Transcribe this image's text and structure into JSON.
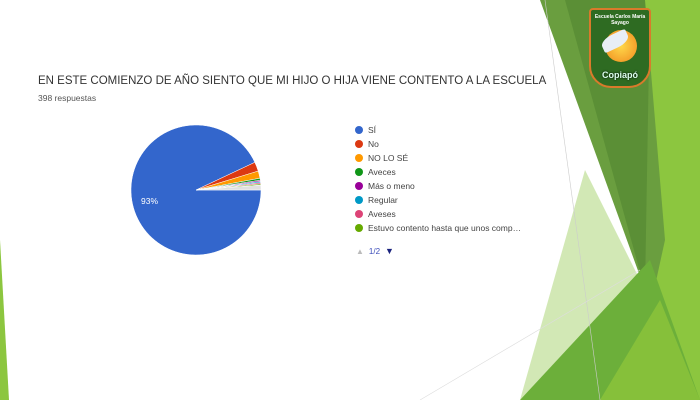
{
  "question": {
    "title": "EN ESTE COMIENZO DE AÑO SIENTO QUE MI HIJO O HIJA VIENE CONTENTO A LA ESCUELA",
    "responses": "398 respuestas"
  },
  "logo": {
    "text_top": "Escuela Carlos María Sayago",
    "text_bottom": "Copiapó"
  },
  "chart_data": {
    "type": "pie",
    "legend_position": "right",
    "categories": [
      "SÍ",
      "No",
      "NO LO SÉ",
      "Aveces",
      "Más o meno",
      "Regular",
      "Aveses",
      "Estuvo contento hasta que unos comp…"
    ],
    "values": [
      93,
      2.3,
      1.8,
      0.5,
      0.3,
      0.3,
      0.3,
      0.3
    ],
    "other_value": 1.2,
    "colors": [
      "#3366cc",
      "#dc3912",
      "#ff9900",
      "#109618",
      "#990099",
      "#0099c6",
      "#dd4477",
      "#66aa00"
    ],
    "other_color": "#e0e0e0",
    "data_labels": [
      "93%"
    ]
  },
  "pager": {
    "label": "1/2"
  }
}
